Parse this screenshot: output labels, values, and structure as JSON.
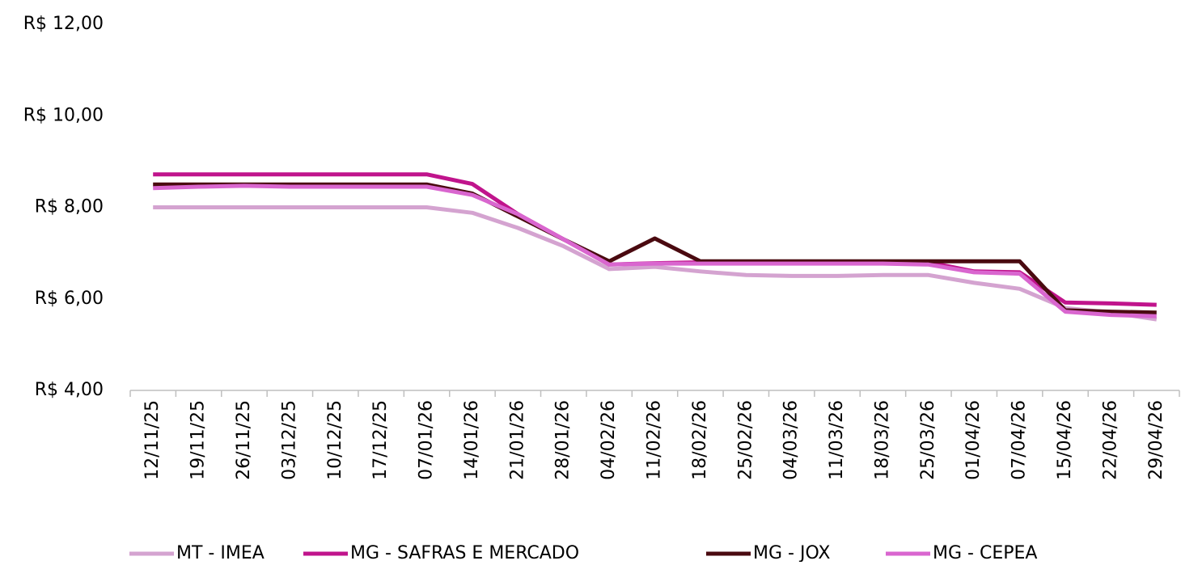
{
  "chart_data": {
    "type": "line",
    "categories": [
      "12/11/25",
      "19/11/25",
      "26/11/25",
      "03/12/25",
      "10/12/25",
      "17/12/25",
      "07/01/26",
      "14/01/26",
      "21/01/26",
      "28/01/26",
      "04/02/26",
      "11/02/26",
      "18/02/26",
      "25/02/26",
      "04/03/26",
      "11/03/26",
      "18/03/26",
      "25/03/26",
      "01/04/26",
      "07/04/26",
      "15/04/26",
      "22/04/26",
      "29/04/26"
    ],
    "series": [
      {
        "name": "MT - IMEA",
        "color": "#d4a3d0",
        "values": [
          8.0,
          8.0,
          8.0,
          8.0,
          8.0,
          8.0,
          8.0,
          7.88,
          7.55,
          7.15,
          6.65,
          6.7,
          6.6,
          6.52,
          6.5,
          6.5,
          6.52,
          6.52,
          6.35,
          6.22,
          5.8,
          5.7,
          5.55
        ]
      },
      {
        "name": "MG - SAFRAS E MERCADO",
        "color": "#c0148c",
        "values": [
          8.72,
          8.72,
          8.72,
          8.72,
          8.72,
          8.72,
          8.72,
          8.51,
          7.85,
          7.3,
          6.75,
          6.78,
          6.8,
          6.8,
          6.8,
          6.8,
          6.8,
          6.8,
          6.6,
          6.58,
          5.92,
          5.9,
          5.87
        ]
      },
      {
        "name": "MG - JOX",
        "color": "#4a0a10",
        "values": [
          8.5,
          8.5,
          8.5,
          8.5,
          8.5,
          8.5,
          8.5,
          8.3,
          7.8,
          7.3,
          6.82,
          7.32,
          6.82,
          6.82,
          6.82,
          6.82,
          6.82,
          6.82,
          6.82,
          6.82,
          5.75,
          5.72,
          5.7
        ]
      },
      {
        "name": "MG - CEPEA",
        "color": "#d966cf",
        "values": [
          8.42,
          8.45,
          8.47,
          8.45,
          8.45,
          8.45,
          8.45,
          8.27,
          7.85,
          7.3,
          6.75,
          6.77,
          6.77,
          6.77,
          6.77,
          6.77,
          6.77,
          6.75,
          6.58,
          6.55,
          5.72,
          5.65,
          5.62
        ]
      }
    ],
    "ylim": [
      4,
      12
    ],
    "yticks": [
      {
        "value": 4,
        "label": "R$ 4,00"
      },
      {
        "value": 6,
        "label": "R$ 6,00"
      },
      {
        "value": 8,
        "label": "R$ 8,00"
      },
      {
        "value": 10,
        "label": "R$ 10,00"
      },
      {
        "value": 12,
        "label": "R$ 12,00"
      }
    ],
    "grid": false
  }
}
